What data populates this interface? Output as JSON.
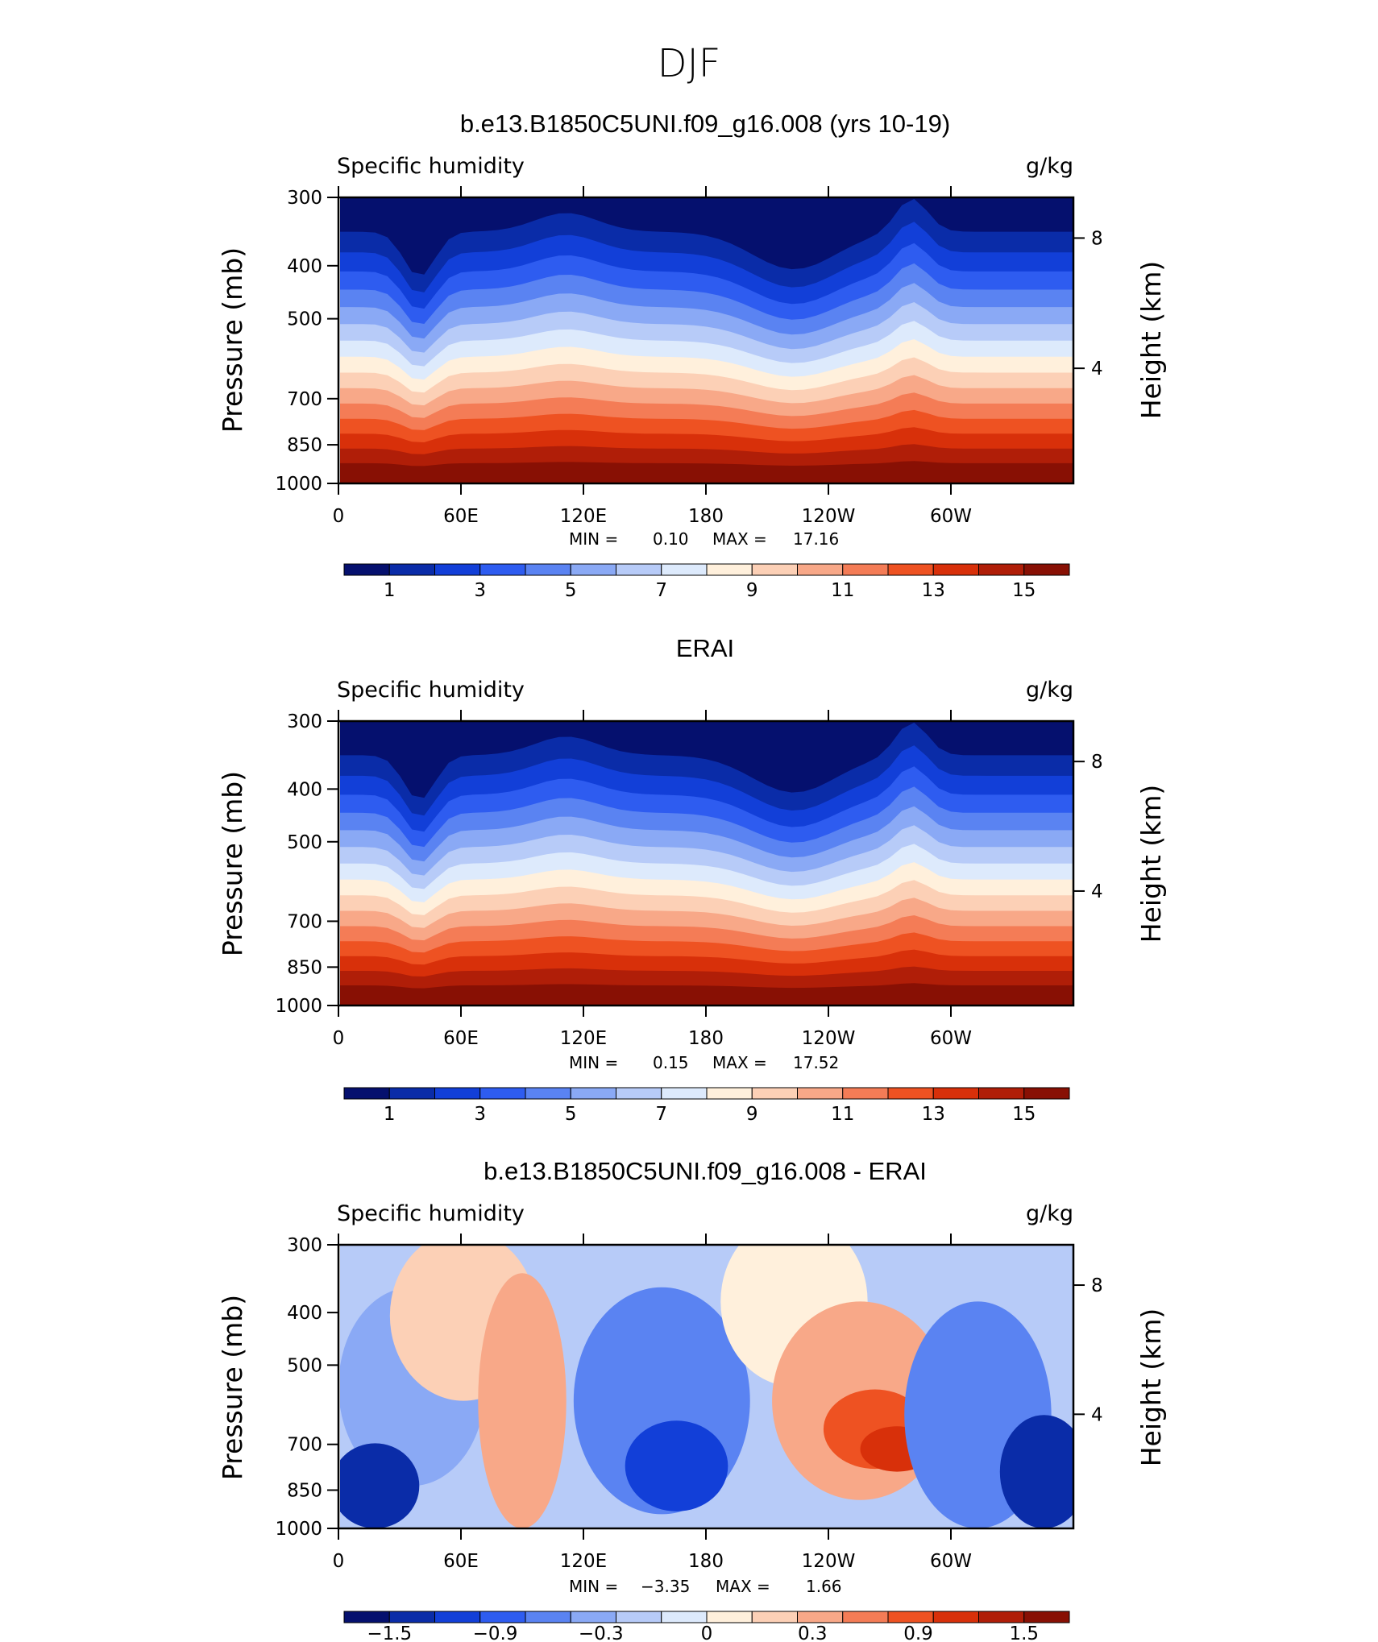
{
  "figure_title": "DJF",
  "chart_data": [
    {
      "type": "contour",
      "title": "b.e13.B1850C5UNI.f09_g16.008 (yrs 10-19)",
      "subtitle_left": "Specific humidity",
      "subtitle_right": "g/kg",
      "ylabel": "Pressure (mb)",
      "y2label": "Height (km)",
      "y_ticks": [
        "300",
        "400",
        "500",
        "700",
        "850",
        "1000"
      ],
      "y2_ticks": [
        "8",
        "4"
      ],
      "x_ticks": [
        "0",
        "60E",
        "120E",
        "180",
        "120W",
        "60W"
      ],
      "min_label": "MIN =",
      "min_value": "0.10",
      "max_label": "MAX =",
      "max_value": "17.16",
      "colorbar_labels": [
        "1",
        "3",
        "5",
        "7",
        "9",
        "11",
        "13",
        "15"
      ],
      "colorbar_colors": [
        "#05106e",
        "#0a2ca8",
        "#123fd8",
        "#2e5cf0",
        "#5a83f2",
        "#8aa9f5",
        "#b7cbf8",
        "#ddeafc",
        "#fff0dc",
        "#fcd0b6",
        "#f8a888",
        "#f47c56",
        "#ee5222",
        "#d8300a",
        "#b01e08",
        "#881004"
      ],
      "blend": 0
    },
    {
      "type": "contour",
      "title": "ERAI",
      "subtitle_left": "Specific humidity",
      "subtitle_right": "g/kg",
      "ylabel": "Pressure (mb)",
      "y2label": "Height (km)",
      "y_ticks": [
        "300",
        "400",
        "500",
        "700",
        "850",
        "1000"
      ],
      "y2_ticks": [
        "8",
        "4"
      ],
      "x_ticks": [
        "0",
        "60E",
        "120E",
        "180",
        "120W",
        "60W"
      ],
      "min_label": "MIN =",
      "min_value": "0.15",
      "max_label": "MAX =",
      "max_value": "17.52",
      "colorbar_labels": [
        "1",
        "3",
        "5",
        "7",
        "9",
        "11",
        "13",
        "15"
      ],
      "colorbar_colors": [
        "#05106e",
        "#0a2ca8",
        "#123fd8",
        "#2e5cf0",
        "#5a83f2",
        "#8aa9f5",
        "#b7cbf8",
        "#ddeafc",
        "#fff0dc",
        "#fcd0b6",
        "#f8a888",
        "#f47c56",
        "#ee5222",
        "#d8300a",
        "#b01e08",
        "#881004"
      ],
      "blend": 0
    },
    {
      "type": "contour",
      "title": "b.e13.B1850C5UNI.f09_g16.008 - ERAI",
      "subtitle_left": "Specific humidity",
      "subtitle_right": "g/kg",
      "ylabel": "Pressure (mb)",
      "y2label": "Height (km)",
      "y_ticks": [
        "300",
        "400",
        "500",
        "700",
        "850",
        "1000"
      ],
      "y2_ticks": [
        "8",
        "4"
      ],
      "x_ticks": [
        "0",
        "60E",
        "120E",
        "180",
        "120W",
        "60W"
      ],
      "min_label": "MIN =",
      "min_value": "−3.35",
      "max_label": "MAX =",
      "max_value": "1.66",
      "colorbar_labels": [
        "−1.5",
        "−0.9",
        "−0.3",
        "0",
        "0.3",
        "0.9",
        "1.5"
      ],
      "colorbar_colors": [
        "#05106e",
        "#0a2ca8",
        "#123fd8",
        "#2e5cf0",
        "#5a83f2",
        "#8aa9f5",
        "#b7cbf8",
        "#ddeafc",
        "#fff0dc",
        "#fcd0b6",
        "#f8a888",
        "#f47c56",
        "#ee5222",
        "#d8300a",
        "#b01e08",
        "#881004"
      ],
      "blend": 1
    }
  ]
}
